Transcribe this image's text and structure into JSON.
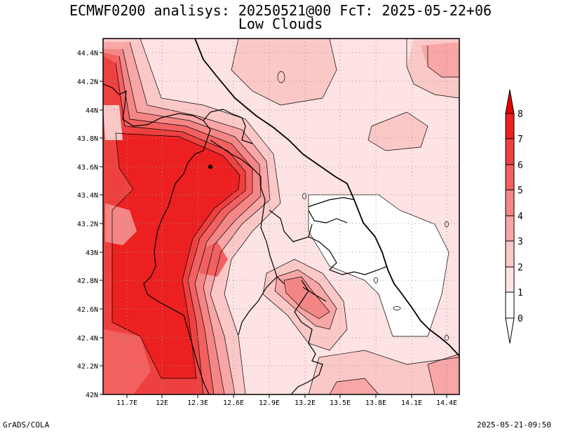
{
  "title": "ECMWF0200 analisys: 20250521@00 FcT: 2025-05-22+06",
  "subtitle": "Low Clouds",
  "footer_left": "GrADS/COLA",
  "footer_right": "2025-05-21-09:50",
  "map": {
    "lon_range": [
      11.5,
      14.5
    ],
    "lat_range": [
      42.0,
      44.5
    ],
    "grid": "dotted",
    "lon_ticks": [
      "11.7E",
      "12E",
      "12.3E",
      "12.6E",
      "12.9E",
      "13.2E",
      "13.5E",
      "13.8E",
      "14.1E",
      "14.4E"
    ],
    "lat_ticks": [
      "42N",
      "42.2N",
      "42.4N",
      "42.6N",
      "42.8N",
      "43N",
      "43.2N",
      "43.4N",
      "43.6N",
      "43.8N",
      "44N",
      "44.2N",
      "44.4N"
    ]
  },
  "colorbar": {
    "labels": [
      "0",
      "1",
      "2",
      "3",
      "4",
      "5",
      "6",
      "7",
      "8"
    ],
    "colors": [
      "#ffffff",
      "#fde3e3",
      "#fbc8c8",
      "#f8a6a6",
      "#f58686",
      "#f26060",
      "#ef4040",
      "#ec2020",
      "#e60000"
    ]
  },
  "colors": {
    "coast": "#000000",
    "border": "#000000",
    "contour": "#000000"
  }
}
